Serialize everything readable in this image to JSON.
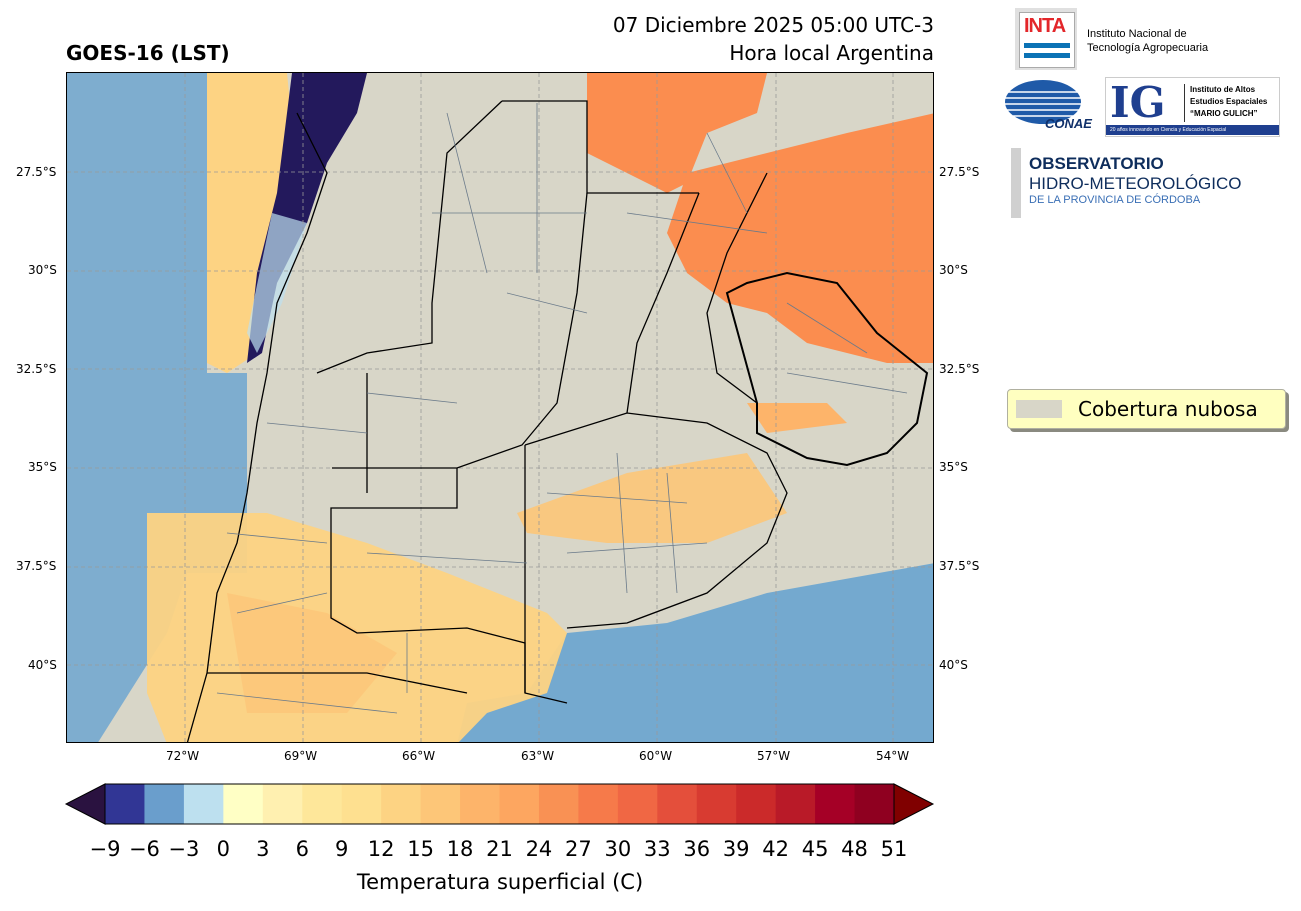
{
  "header": {
    "title_left": "GOES-16 (LST)",
    "datetime": "07 Diciembre 2025 05:00 UTC-3",
    "local_time_label": "Hora local Argentina"
  },
  "map": {
    "lat_ticks": [
      "27.5°S",
      "30°S",
      "32.5°S",
      "35°S",
      "37.5°S",
      "40°S"
    ],
    "lon_ticks": [
      "72°W",
      "69°W",
      "66°W",
      "63°W",
      "60°W",
      "57°W",
      "54°W"
    ],
    "gridlines": true,
    "legend_label": "Cobertura nubosa",
    "colors": {
      "cloud": "#d8d6c8",
      "cold_blue": "#74a9cf",
      "deep_cold": "#23195c",
      "warm": "#fdcb7c",
      "hot": "#fb8d4f",
      "border": "#6a7a8a"
    }
  },
  "colorbar": {
    "label": "Temperatura superficial (C)",
    "ticks": [
      "−9",
      "−6",
      "−3",
      "0",
      "3",
      "6",
      "9",
      "12",
      "15",
      "18",
      "21",
      "24",
      "27",
      "30",
      "33",
      "36",
      "39",
      "42",
      "45",
      "48",
      "51"
    ],
    "colors": [
      "#313695",
      "#6a9ecc",
      "#bde0ef",
      "#ffffc5",
      "#fff0b0",
      "#fee79a",
      "#fee090",
      "#fdd383",
      "#fdc678",
      "#fdb46a",
      "#fda660",
      "#f99154",
      "#f67a4a",
      "#f06744",
      "#e44f3b",
      "#d83b31",
      "#cb2a2a",
      "#b91a28",
      "#a50026",
      "#8f0020"
    ],
    "under_color": "#2a1240",
    "over_color": "#800000"
  },
  "logos": {
    "inta_mark": "INTA",
    "inta_name_1": "Instituto Nacional de",
    "inta_name_2": "Tecnología Agropecuaria",
    "conae": "CONAE",
    "ig_mark": "IG",
    "ig_name_1": "Instituto de Altos",
    "ig_name_2": "Estudios Espaciales",
    "ig_name_3": "“MARIO GULICH”",
    "ig_tagline": "20 años innovando en Ciencia y Educación Espacial",
    "obs_1": "OBSERVATORIO",
    "obs_2": "HIDRO-METEOROLÓGICO",
    "obs_3": "DE LA PROVINCIA DE CÓRDOBA"
  }
}
